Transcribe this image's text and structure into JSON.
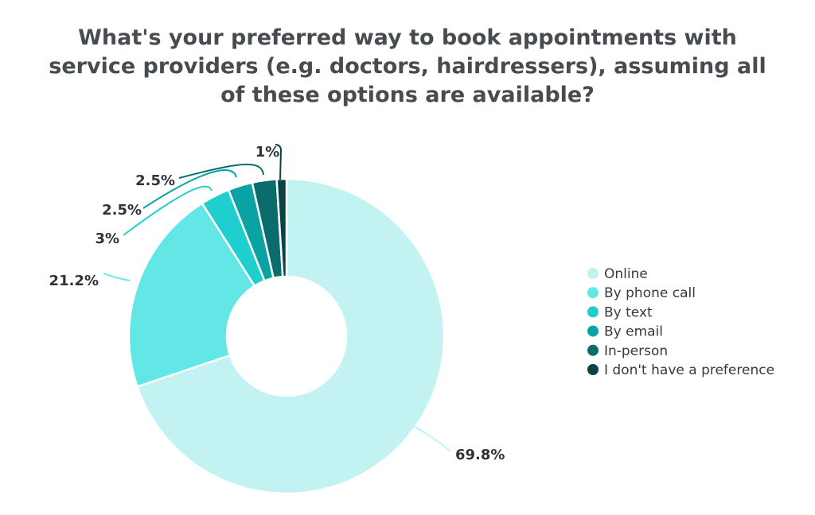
{
  "chart_data": {
    "type": "pie",
    "donut": true,
    "title": "What's your preferred way to book appointments with service providers (e.g. doctors, hairdressers), assuming all of these options are available?",
    "title_lines": [
      "What's your preferred way to book appointments with",
      "service providers (e.g. doctors, hairdressers), assuming all",
      "of these options are available?"
    ],
    "categories": [
      "Online",
      "By phone call",
      "By text",
      "By email",
      "In-person",
      "I don't have a preference"
    ],
    "values": [
      69.8,
      21.2,
      3,
      2.5,
      2.5,
      1
    ],
    "labels": [
      "69.8%",
      "21.2%",
      "3%",
      "2.5%",
      "2.5%",
      "1%"
    ],
    "colors": [
      "#c3f2f2",
      "#62e6e6",
      "#1fcece",
      "#0aa3a3",
      "#0b6c6c",
      "#084444"
    ],
    "legend_position": "right"
  }
}
